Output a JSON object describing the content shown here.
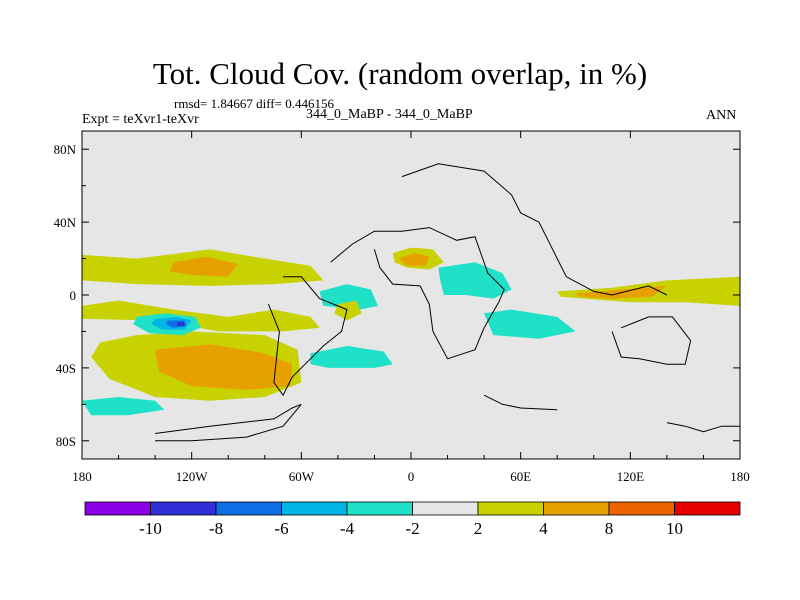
{
  "title": "Tot. Cloud Cov. (random overlap, in %)",
  "stats_text": "rmsd= 1.84667 diff= 0.446156",
  "left_label": "Expt = teXvr1-teXvr",
  "center_label": "344_0_MaBP - 344_0_MaBP",
  "right_label": "ANN",
  "chart_data": {
    "type": "heatmap",
    "map": "global lon-lat difference field with coastlines",
    "xlim": [
      -180,
      180
    ],
    "ylim": [
      -90,
      90
    ],
    "x_ticks": [
      {
        "value": -180,
        "label": "180"
      },
      {
        "value": -120,
        "label": "120W"
      },
      {
        "value": -60,
        "label": "60W"
      },
      {
        "value": 0,
        "label": "0"
      },
      {
        "value": 60,
        "label": "60E"
      },
      {
        "value": 120,
        "label": "120E"
      },
      {
        "value": 180,
        "label": "180"
      }
    ],
    "y_ticks": [
      {
        "value": 80,
        "label": "80N"
      },
      {
        "value": 40,
        "label": "40N"
      },
      {
        "value": 0,
        "label": "0"
      },
      {
        "value": -40,
        "label": "40S"
      },
      {
        "value": -80,
        "label": "80S"
      }
    ],
    "levels": [
      -10,
      -8,
      -6,
      -4,
      -2,
      2,
      4,
      8,
      10
    ],
    "colorbar_colors": [
      "#8c00e6",
      "#2f2fd7",
      "#0f6ee6",
      "#00b4e6",
      "#1ee1c8",
      "#e6e6e6",
      "#c8d200",
      "#e6a000",
      "#eb6400",
      "#e60000"
    ],
    "regions": [
      {
        "level_min": 2,
        "level_max": 4,
        "polygon": [
          [
            -180,
            22
          ],
          [
            -150,
            20
          ],
          [
            -110,
            25
          ],
          [
            -80,
            20
          ],
          [
            -55,
            16
          ],
          [
            -48,
            8
          ],
          [
            -75,
            6
          ],
          [
            -110,
            5
          ],
          [
            -150,
            6
          ],
          [
            -180,
            8
          ]
        ]
      },
      {
        "level_min": 4,
        "level_max": 8,
        "polygon": [
          [
            -130,
            18
          ],
          [
            -112,
            21
          ],
          [
            -95,
            17
          ],
          [
            -100,
            10
          ],
          [
            -120,
            11
          ],
          [
            -132,
            13
          ]
        ]
      },
      {
        "level_min": 2,
        "level_max": 4,
        "polygon": [
          [
            -180,
            -6
          ],
          [
            -160,
            -3
          ],
          [
            -130,
            -8
          ],
          [
            -100,
            -12
          ],
          [
            -75,
            -8
          ],
          [
            -55,
            -12
          ],
          [
            -50,
            -18
          ],
          [
            -70,
            -20
          ],
          [
            -105,
            -20
          ],
          [
            -140,
            -14
          ],
          [
            -180,
            -13
          ]
        ]
      },
      {
        "level_min": 2,
        "level_max": 4,
        "polygon": [
          [
            -170,
            -26
          ],
          [
            -150,
            -22
          ],
          [
            -120,
            -20
          ],
          [
            -80,
            -22
          ],
          [
            -62,
            -30
          ],
          [
            -60,
            -48
          ],
          [
            -80,
            -56
          ],
          [
            -110,
            -58
          ],
          [
            -140,
            -56
          ],
          [
            -165,
            -46
          ],
          [
            -175,
            -34
          ]
        ]
      },
      {
        "level_min": 4,
        "level_max": 8,
        "polygon": [
          [
            -140,
            -30
          ],
          [
            -110,
            -27
          ],
          [
            -80,
            -32
          ],
          [
            -65,
            -38
          ],
          [
            -66,
            -50
          ],
          [
            -90,
            -52
          ],
          [
            -120,
            -50
          ],
          [
            -138,
            -42
          ]
        ]
      },
      {
        "level_min": -4,
        "level_max": -2,
        "polygon": [
          [
            -150,
            -12
          ],
          [
            -135,
            -10
          ],
          [
            -118,
            -12
          ],
          [
            -115,
            -18
          ],
          [
            -125,
            -22
          ],
          [
            -143,
            -21
          ],
          [
            -152,
            -16
          ]
        ]
      },
      {
        "level_min": -6,
        "level_max": -4,
        "polygon": [
          [
            -140,
            -13
          ],
          [
            -128,
            -12
          ],
          [
            -120,
            -14
          ],
          [
            -124,
            -19
          ],
          [
            -136,
            -19
          ],
          [
            -142,
            -16
          ]
        ]
      },
      {
        "level_min": -8,
        "level_max": -6,
        "polygon": [
          [
            -133,
            -14
          ],
          [
            -124,
            -14
          ],
          [
            -123,
            -17
          ],
          [
            -130,
            -18
          ],
          [
            -134,
            -16
          ]
        ]
      },
      {
        "level_min": -10,
        "level_max": -8,
        "polygon": [
          [
            -128,
            -15
          ],
          [
            -124,
            -15
          ],
          [
            -124,
            -17
          ],
          [
            -128,
            -17
          ]
        ]
      },
      {
        "level_min": -4,
        "level_max": -2,
        "polygon": [
          [
            -180,
            -58
          ],
          [
            -160,
            -56
          ],
          [
            -140,
            -58
          ],
          [
            -135,
            -63
          ],
          [
            -155,
            -66
          ],
          [
            -175,
            -66
          ]
        ]
      },
      {
        "level_min": -4,
        "level_max": -2,
        "polygon": [
          [
            -50,
            2
          ],
          [
            -35,
            6
          ],
          [
            -22,
            3
          ],
          [
            -18,
            -6
          ],
          [
            -28,
            -8
          ],
          [
            -48,
            -6
          ]
        ]
      },
      {
        "level_min": -4,
        "level_max": -2,
        "polygon": [
          [
            -55,
            -32
          ],
          [
            -35,
            -28
          ],
          [
            -15,
            -31
          ],
          [
            -10,
            -38
          ],
          [
            -20,
            -40
          ],
          [
            -45,
            -40
          ],
          [
            -55,
            -38
          ]
        ]
      },
      {
        "level_min": 2,
        "level_max": 4,
        "polygon": [
          [
            -40,
            -5
          ],
          [
            -30,
            -3
          ],
          [
            -27,
            -10
          ],
          [
            -35,
            -14
          ],
          [
            -42,
            -10
          ]
        ]
      },
      {
        "level_min": -4,
        "level_max": -2,
        "polygon": [
          [
            15,
            15
          ],
          [
            35,
            18
          ],
          [
            50,
            12
          ],
          [
            55,
            3
          ],
          [
            45,
            -2
          ],
          [
            30,
            0
          ],
          [
            18,
            0
          ],
          [
            16,
            8
          ]
        ]
      },
      {
        "level_min": -4,
        "level_max": -2,
        "polygon": [
          [
            40,
            -10
          ],
          [
            55,
            -8
          ],
          [
            80,
            -12
          ],
          [
            90,
            -20
          ],
          [
            70,
            -24
          ],
          [
            45,
            -22
          ]
        ]
      },
      {
        "level_min": 2,
        "level_max": 4,
        "polygon": [
          [
            -10,
            23
          ],
          [
            0,
            26
          ],
          [
            12,
            25
          ],
          [
            18,
            18
          ],
          [
            10,
            14
          ],
          [
            -2,
            15
          ],
          [
            -9,
            18
          ]
        ]
      },
      {
        "level_min": 4,
        "level_max": 8,
        "polygon": [
          [
            -7,
            20
          ],
          [
            2,
            23
          ],
          [
            10,
            21
          ],
          [
            8,
            16
          ],
          [
            -2,
            16
          ]
        ]
      },
      {
        "level_min": 2,
        "level_max": 4,
        "polygon": [
          [
            80,
            2
          ],
          [
            110,
            4
          ],
          [
            140,
            8
          ],
          [
            180,
            10
          ],
          [
            180,
            -6
          ],
          [
            150,
            -4
          ],
          [
            120,
            -4
          ],
          [
            95,
            -2
          ],
          [
            82,
            -1
          ]
        ]
      },
      {
        "level_min": 4,
        "level_max": 8,
        "polygon": [
          [
            90,
            1
          ],
          [
            115,
            3
          ],
          [
            140,
            5
          ],
          [
            132,
            -1
          ],
          [
            110,
            -2
          ],
          [
            92,
            -1
          ]
        ]
      }
    ],
    "coastlines": [
      [
        [
          -140,
          -76
        ],
        [
          -110,
          -72
        ],
        [
          -75,
          -68
        ],
        [
          -65,
          -62
        ],
        [
          -60,
          -60
        ],
        [
          -70,
          -72
        ],
        [
          -90,
          -78
        ],
        [
          -120,
          -80
        ],
        [
          -140,
          -80
        ]
      ],
      [
        [
          -5,
          65
        ],
        [
          15,
          72
        ],
        [
          40,
          68
        ],
        [
          55,
          55
        ],
        [
          60,
          45
        ],
        [
          70,
          40
        ],
        [
          75,
          30
        ],
        [
          80,
          20
        ],
        [
          85,
          10
        ],
        [
          100,
          2
        ],
        [
          110,
          0
        ],
        [
          130,
          5
        ],
        [
          140,
          0
        ]
      ],
      [
        [
          -44,
          18
        ],
        [
          -32,
          28
        ],
        [
          -20,
          35
        ],
        [
          -5,
          35
        ],
        [
          10,
          37
        ],
        [
          25,
          30
        ],
        [
          35,
          32
        ],
        [
          42,
          12
        ],
        [
          51,
          3
        ],
        [
          48,
          -4
        ],
        [
          40,
          -18
        ],
        [
          35,
          -30
        ],
        [
          20,
          -35
        ],
        [
          12,
          -20
        ],
        [
          10,
          -5
        ],
        [
          5,
          5
        ],
        [
          -10,
          6
        ],
        [
          -17,
          15
        ],
        [
          -20,
          25
        ]
      ],
      [
        [
          -70,
          10
        ],
        [
          -60,
          10
        ],
        [
          -50,
          -2
        ],
        [
          -35,
          -8
        ],
        [
          -38,
          -20
        ],
        [
          -48,
          -28
        ],
        [
          -55,
          -35
        ],
        [
          -65,
          -45
        ],
        [
          -70,
          -55
        ],
        [
          -75,
          -48
        ],
        [
          -72,
          -20
        ],
        [
          -78,
          -5
        ]
      ],
      [
        [
          110,
          -20
        ],
        [
          115,
          -34
        ],
        [
          125,
          -35
        ],
        [
          140,
          -38
        ],
        [
          150,
          -38
        ],
        [
          153,
          -25
        ],
        [
          143,
          -12
        ],
        [
          130,
          -12
        ],
        [
          115,
          -18
        ]
      ],
      [
        [
          140,
          -70
        ],
        [
          150,
          -72
        ],
        [
          160,
          -75
        ],
        [
          170,
          -72
        ],
        [
          180,
          -72
        ]
      ],
      [
        [
          40,
          -55
        ],
        [
          50,
          -60
        ],
        [
          60,
          -62
        ],
        [
          80,
          -63
        ]
      ]
    ]
  }
}
